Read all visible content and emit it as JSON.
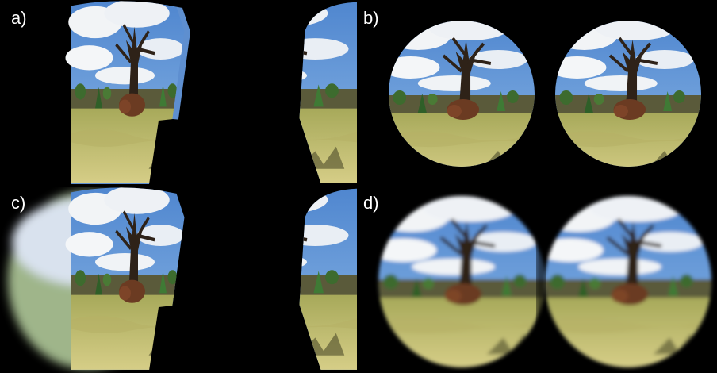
{
  "panels": [
    {
      "id": "a",
      "label": "a)"
    },
    {
      "id": "b",
      "label": "b)"
    },
    {
      "id": "c",
      "label": "c)"
    },
    {
      "id": "d",
      "label": "d)"
    }
  ],
  "colors": {
    "sky": "#6f9fd6",
    "cloud": "#f2f4f6",
    "grass": "#c8c06a",
    "grass_dark": "#8f8a3c",
    "tree": "#2e2218",
    "bush": "#6b3b22",
    "foliage": "#3d6b2e"
  }
}
